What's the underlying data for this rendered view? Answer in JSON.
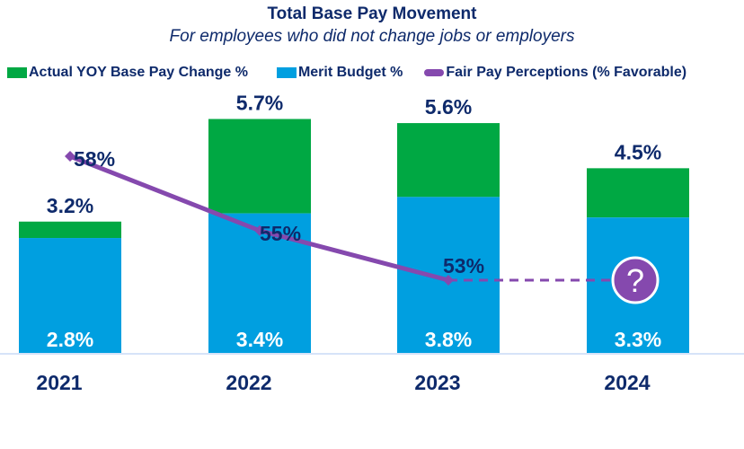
{
  "chart_data": {
    "type": "bar",
    "title": "Total Base Pay Movement",
    "subtitle": "For employees who did not change jobs or employers",
    "categories": [
      "2021",
      "2022",
      "2023",
      "2024"
    ],
    "stacked": true,
    "series": [
      {
        "name": "Actual YOY Base Pay Change %",
        "type": "bar",
        "values": [
          3.2,
          5.7,
          5.6,
          4.5
        ],
        "labels": [
          "3.2%",
          "5.7%",
          "5.6%",
          "4.5%"
        ],
        "color": "#00A843"
      },
      {
        "name": "Merit Budget %",
        "type": "bar",
        "values": [
          2.8,
          3.4,
          3.8,
          3.3
        ],
        "labels": [
          "2.8%",
          "3.4%",
          "3.8%",
          "3.3%"
        ],
        "color": "#009FE0"
      },
      {
        "name": "Fair Pay Perceptions (% Favorable)",
        "type": "line",
        "values": [
          58,
          55,
          53,
          null
        ],
        "labels": [
          "58%",
          "55%",
          "53%",
          "?"
        ],
        "color": "#8549AE",
        "projection": "dashed to 2024, value unknown"
      }
    ],
    "legend_position": "top",
    "grid": false,
    "text_color": "#0E2A6B"
  }
}
